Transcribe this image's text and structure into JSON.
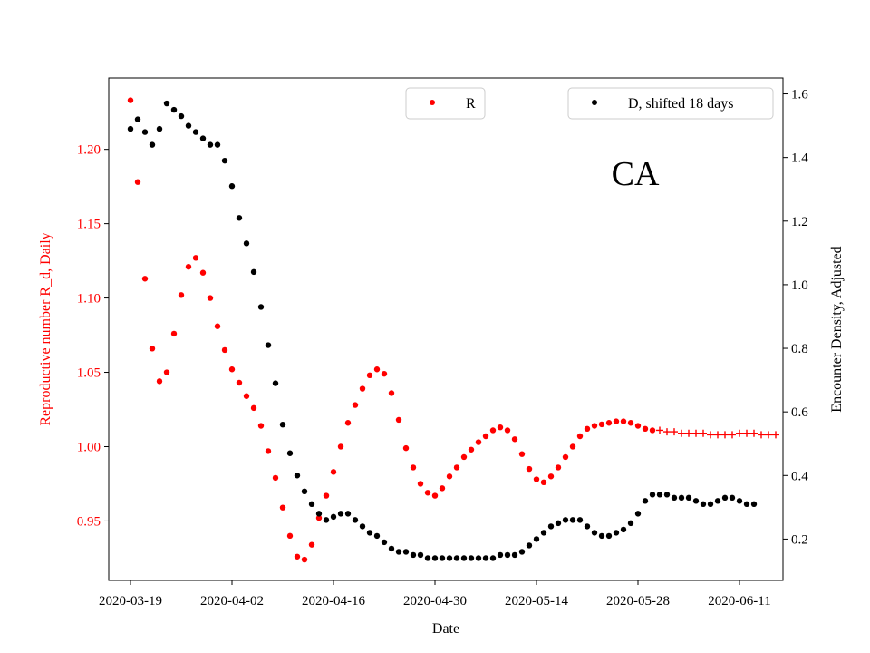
{
  "chart_data": {
    "type": "scatter",
    "xlabel": "Date",
    "ylabel_left": "Reproductive number R_d, Daily",
    "ylabel_right": "Encounter Density, Adjusted",
    "annotation": "CA",
    "x_start": "2020-03-19",
    "x_end": "2020-06-15",
    "xlim": [
      "2020-03-16",
      "2020-06-17"
    ],
    "x_ticks": [
      "2020-03-19",
      "2020-04-02",
      "2020-04-16",
      "2020-04-30",
      "2020-05-14",
      "2020-05-28",
      "2020-06-11"
    ],
    "y_left_lim": [
      0.91,
      1.248
    ],
    "y_left_ticks": [
      0.95,
      1.0,
      1.05,
      1.1,
      1.15,
      1.2
    ],
    "y_right_lim": [
      0.07,
      1.65
    ],
    "y_right_ticks": [
      0.2,
      0.4,
      0.6,
      0.8,
      1.0,
      1.2,
      1.4,
      1.6
    ],
    "left_axis_color": "#ff0000",
    "right_axis_color": "#000000",
    "series": [
      {
        "name": "R",
        "axis": "left",
        "color": "#ff0000",
        "marker": "dot",
        "values": [
          1.233,
          1.178,
          1.113,
          1.066,
          1.044,
          1.05,
          1.076,
          1.102,
          1.121,
          1.127,
          1.117,
          1.1,
          1.081,
          1.065,
          1.052,
          1.043,
          1.034,
          1.026,
          1.014,
          0.997,
          0.979,
          0.959,
          0.94,
          0.926,
          0.924,
          0.934,
          0.952,
          0.967,
          0.983,
          1.0,
          1.016,
          1.028,
          1.039,
          1.048,
          1.052,
          1.049,
          1.036,
          1.018,
          0.999,
          0.986,
          0.975,
          0.969,
          0.967,
          0.972,
          0.98,
          0.986,
          0.993,
          0.998,
          1.003,
          1.007,
          1.011,
          1.013,
          1.011,
          1.005,
          0.995,
          0.985,
          0.978,
          0.976,
          0.98,
          0.986,
          0.993,
          1.0,
          1.007,
          1.012,
          1.014,
          1.015,
          1.016,
          1.017,
          1.017,
          1.016,
          1.014,
          1.012,
          1.011
        ]
      },
      {
        "name": "",
        "axis": "left",
        "color": "#ff0000",
        "marker": "plus",
        "start_date": "2020-05-31",
        "values": [
          1.011,
          1.01,
          1.01,
          1.009,
          1.009,
          1.009,
          1.009,
          1.008,
          1.008,
          1.008,
          1.008,
          1.009,
          1.009,
          1.009,
          1.008,
          1.008,
          1.008
        ]
      },
      {
        "name": "D, shifted 18 days",
        "axis": "right",
        "color": "#000000",
        "marker": "dot",
        "values": [
          1.49,
          1.52,
          1.48,
          1.44,
          1.49,
          1.57,
          1.55,
          1.53,
          1.5,
          1.48,
          1.46,
          1.44,
          1.44,
          1.39,
          1.31,
          1.21,
          1.13,
          1.04,
          0.93,
          0.81,
          0.69,
          0.56,
          0.47,
          0.4,
          0.35,
          0.31,
          0.28,
          0.26,
          0.27,
          0.28,
          0.28,
          0.26,
          0.24,
          0.22,
          0.21,
          0.19,
          0.17,
          0.16,
          0.16,
          0.15,
          0.15,
          0.14,
          0.14,
          0.14,
          0.14,
          0.14,
          0.14,
          0.14,
          0.14,
          0.14,
          0.14,
          0.15,
          0.15,
          0.15,
          0.16,
          0.18,
          0.2,
          0.22,
          0.24,
          0.25,
          0.26,
          0.26,
          0.26,
          0.24,
          0.22,
          0.21,
          0.21,
          0.22,
          0.23,
          0.25,
          0.28,
          0.32,
          0.34,
          0.34,
          0.34,
          0.33,
          0.33,
          0.33,
          0.32,
          0.31,
          0.31,
          0.32,
          0.33,
          0.33,
          0.32,
          0.31,
          0.31
        ]
      }
    ],
    "legends": [
      {
        "label": "R",
        "color": "#ff0000",
        "placement": "top-center"
      },
      {
        "label": "D, shifted 18 days",
        "color": "#000000",
        "placement": "top-right"
      }
    ]
  }
}
